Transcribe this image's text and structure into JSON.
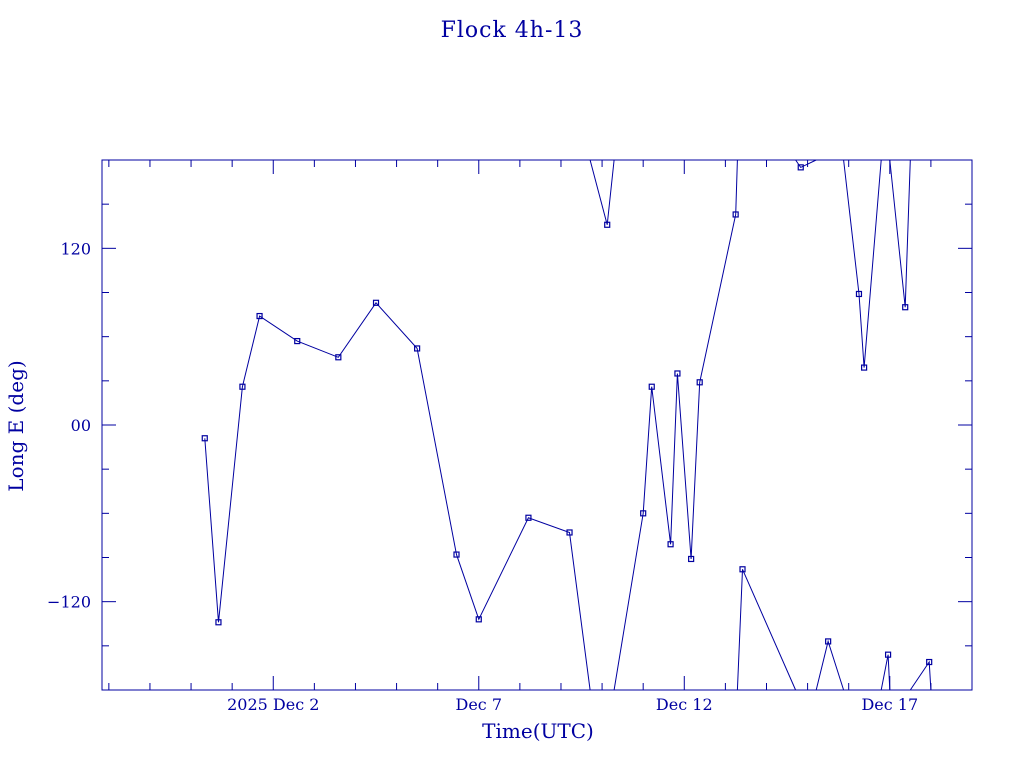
{
  "chart_data": {
    "type": "line",
    "title": "Flock 4h-13",
    "xlabel": "Time(UTC)",
    "ylabel": "Long E (deg)",
    "x_unit": "days (Dec 2025)",
    "xlim": [
      27.8,
      19.0
    ],
    "x_range_dates": [
      "2025-11-27T20:00",
      "2025-12-19T00:00"
    ],
    "ylim": [
      -180,
      180
    ],
    "x_major_ticks": [
      {
        "date": "2025-12-02",
        "label": "2025 Dec  2"
      },
      {
        "date": "2025-12-07",
        "label": "Dec  7"
      },
      {
        "date": "2025-12-12",
        "label": "Dec 12"
      },
      {
        "date": "2025-12-17",
        "label": "Dec 17"
      }
    ],
    "y_major_ticks": [
      {
        "value": 120,
        "label": "120"
      },
      {
        "value": 0,
        "label": "00"
      },
      {
        "value": -120,
        "label": "−120"
      }
    ],
    "color": "#0000a0",
    "marker": "square",
    "grid": false,
    "points": [
      {
        "t": "2025-11-30T08:00",
        "lon": -9
      },
      {
        "t": "2025-11-30T16:00",
        "lon": -134
      },
      {
        "t": "2025-12-01T06:00",
        "lon": 26
      },
      {
        "t": "2025-12-01T16:00",
        "lon": 74
      },
      {
        "t": "2025-12-02T14:00",
        "lon": 57
      },
      {
        "t": "2025-12-03T14:00",
        "lon": 46
      },
      {
        "t": "2025-12-04T12:00",
        "lon": 83
      },
      {
        "t": "2025-12-05T12:00",
        "lon": 52
      },
      {
        "t": "2025-12-06T11:00",
        "lon": -88
      },
      {
        "t": "2025-12-07T00:00",
        "lon": -132
      },
      {
        "t": "2025-12-08T05:00",
        "lon": -63
      },
      {
        "t": "2025-12-09T05:00",
        "lon": -73
      },
      {
        "t": "2025-12-09T17:00",
        "lon": -180,
        "wrap": true
      },
      {
        "t": "2025-12-09T17:00",
        "lon": 180,
        "wrap": true
      },
      {
        "t": "2025-12-10T03:00",
        "lon": 136
      },
      {
        "t": "2025-12-10T07:00",
        "lon": 180,
        "wrap": true
      },
      {
        "t": "2025-12-10T07:00",
        "lon": -180,
        "wrap": true
      },
      {
        "t": "2025-12-11T00:00",
        "lon": -60
      },
      {
        "t": "2025-12-11T05:00",
        "lon": 26
      },
      {
        "t": "2025-12-11T16:00",
        "lon": -81
      },
      {
        "t": "2025-12-11T20:00",
        "lon": 35
      },
      {
        "t": "2025-12-12T04:00",
        "lon": -91
      },
      {
        "t": "2025-12-12T09:00",
        "lon": 29
      },
      {
        "t": "2025-12-13T06:00",
        "lon": 143
      },
      {
        "t": "2025-12-13T07:00",
        "lon": 180,
        "wrap": true
      },
      {
        "t": "2025-12-13T07:00",
        "lon": -180,
        "wrap": true
      },
      {
        "t": "2025-12-13T10:00",
        "lon": -98
      },
      {
        "t": "2025-12-14T17:00",
        "lon": -180,
        "wrap": true
      },
      {
        "t": "2025-12-14T17:00",
        "lon": 180,
        "wrap": true
      },
      {
        "t": "2025-12-14T20:00",
        "lon": 175
      },
      {
        "t": "2025-12-15T05:00",
        "lon": 180,
        "wrap": true
      },
      {
        "t": "2025-12-15T05:00",
        "lon": -180,
        "wrap": true
      },
      {
        "t": "2025-12-15T12:00",
        "lon": -147
      },
      {
        "t": "2025-12-15T21:00",
        "lon": -180,
        "wrap": true
      },
      {
        "t": "2025-12-15T21:00",
        "lon": 180,
        "wrap": true
      },
      {
        "t": "2025-12-16T06:00",
        "lon": 89
      },
      {
        "t": "2025-12-16T09:00",
        "lon": 39
      },
      {
        "t": "2025-12-16T19:00",
        "lon": 180,
        "wrap": true
      },
      {
        "t": "2025-12-16T19:00",
        "lon": -180,
        "wrap": true
      },
      {
        "t": "2025-12-16T23:00",
        "lon": -156
      },
      {
        "t": "2025-12-17T00:00",
        "lon": -180,
        "wrap": true
      },
      {
        "t": "2025-12-17T00:00",
        "lon": 180,
        "wrap": true
      },
      {
        "t": "2025-12-17T09:00",
        "lon": 80
      },
      {
        "t": "2025-12-17T12:00",
        "lon": 180,
        "wrap": true
      },
      {
        "t": "2025-12-17T12:00",
        "lon": -180,
        "wrap": true
      },
      {
        "t": "2025-12-17T23:00",
        "lon": -161
      },
      {
        "t": "2025-12-18T00:00",
        "lon": -180,
        "wrap": true
      }
    ]
  }
}
